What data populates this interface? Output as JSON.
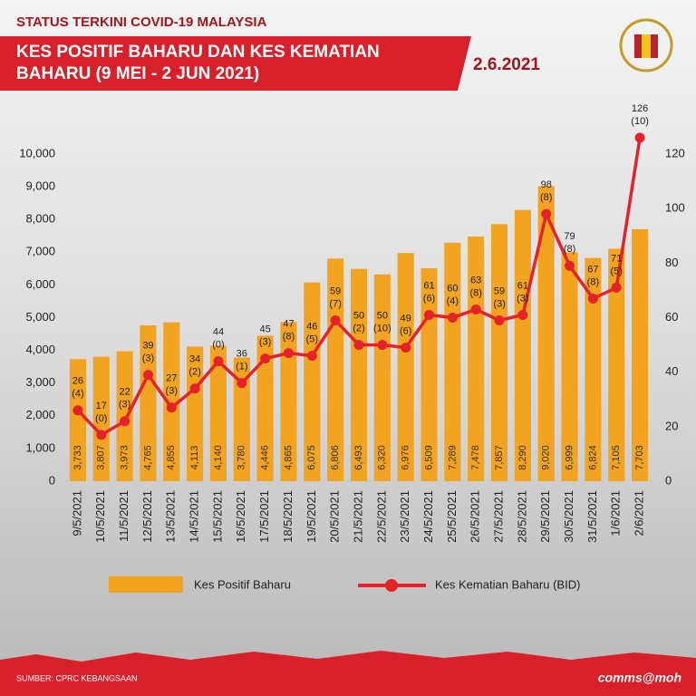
{
  "chart_data": {
    "type": "bar-line",
    "supertitle": "STATUS TERKINI COVID-19 MALAYSIA",
    "title": [
      "KES POSITIF BAHARU DAN KES KEMATIAN",
      "BAHARU (9 MEI - 2 JUN 2021)"
    ],
    "date": "2.6.2021",
    "source": "SUMBER: CPRC KEBANGSAAN",
    "credit": "comms@moh",
    "categories": [
      "9/5/2021",
      "10/5/2021",
      "11/5/2021",
      "12/5/2021",
      "13/5/2021",
      "14/5/2021",
      "15/5/2021",
      "16/5/2021",
      "17/5/2021",
      "18/5/2021",
      "19/5/2021",
      "20/5/2021",
      "21/5/2021",
      "22/5/2021",
      "23/5/2021",
      "24/5/2021",
      "25/5/2021",
      "26/5/2021",
      "27/5/2021",
      "28/5/2021",
      "29/5/2021",
      "30/5/2021",
      "31/5/2021",
      "1/6/2021",
      "2/6/2021"
    ],
    "series": [
      {
        "name": "Kes Positif Baharu",
        "color": "#f2a31f",
        "values": [
          3733,
          3807,
          3973,
          4765,
          4855,
          4113,
          4140,
          3780,
          4446,
          4865,
          6075,
          6806,
          6493,
          6320,
          6976,
          6509,
          7289,
          7478,
          7857,
          8290,
          9020,
          6999,
          6824,
          7105,
          7703
        ],
        "value_labels": [
          "3,733",
          "3,807",
          "3,973",
          "4,765",
          "4,855",
          "4,113",
          "4,140",
          "3,780",
          "4,446",
          "4,865",
          "6,075",
          "6,806",
          "6,493",
          "6,320",
          "6,976",
          "6,509",
          "7,289",
          "7,478",
          "7,857",
          "8,290",
          "9,020",
          "6,999",
          "6,824",
          "7,105",
          "7,703"
        ]
      },
      {
        "name": "Kes Kematian Baharu  (BID)",
        "color": "#e3222a",
        "axis": "y2",
        "values": [
          26,
          17,
          22,
          39,
          27,
          34,
          44,
          36,
          45,
          47,
          46,
          59,
          50,
          50,
          49,
          61,
          60,
          63,
          59,
          61,
          98,
          79,
          67,
          71,
          126
        ],
        "bid_labels": [
          "(4)",
          "(0)",
          "(3)",
          "(3)",
          "(3)",
          "(2)",
          "(0)",
          "(1)",
          "(3)",
          "(8)",
          "(5)",
          "(7)",
          "(2)",
          "(10)",
          "(6)",
          "(6)",
          "(4)",
          "(8)",
          "(3)",
          "(3)",
          "(8)",
          "(8)",
          "(8)",
          "(5)",
          "(10)"
        ]
      }
    ],
    "ylim": [
      0,
      10000
    ],
    "yticks": [
      0,
      {
        "value": 1000,
        "label": "1,000"
      },
      {
        "value": 2000,
        "label": "2,000"
      },
      {
        "value": 3000,
        "label": "3,000"
      },
      {
        "value": 4000,
        "label": "4,000"
      },
      {
        "value": 5000,
        "label": "5,000"
      },
      {
        "value": 6000,
        "label": "6,000"
      },
      {
        "value": 7000,
        "label": "7,000"
      },
      {
        "value": 8000,
        "label": "8,000"
      },
      {
        "value": 9000,
        "label": "9,000"
      },
      {
        "value": 10000,
        "label": "10,000"
      }
    ],
    "y2lim": [
      0,
      120
    ],
    "y2ticks": [
      0,
      20,
      40,
      60,
      80,
      100,
      120
    ]
  }
}
